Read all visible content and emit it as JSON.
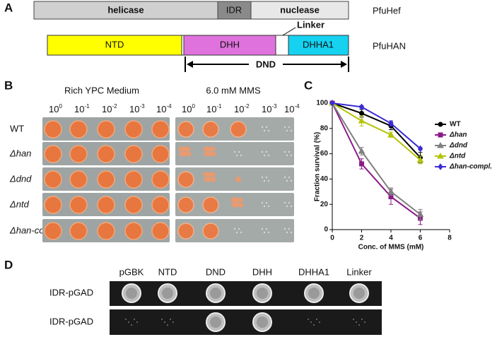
{
  "panel_a": {
    "label": "A",
    "hef": {
      "domains": [
        "helicase",
        "IDR",
        "nuclease"
      ],
      "name": "PfuHef"
    },
    "han": {
      "domains": [
        "NTD",
        "DHH",
        "DHHA1"
      ],
      "name": "PfuHAN",
      "linker": "Linker",
      "span": "DND"
    }
  },
  "panel_b": {
    "label": "B",
    "media": [
      "Rich YPC Medium",
      "6.0 mM MMS"
    ],
    "dilutions": [
      {
        "base": "10",
        "exp": "0"
      },
      {
        "base": "10",
        "exp": "-1"
      },
      {
        "base": "10",
        "exp": "-2"
      },
      {
        "base": "10",
        "exp": "-3"
      },
      {
        "base": "10",
        "exp": "-4"
      }
    ],
    "strains": [
      "WT",
      "Δhan",
      "Δdnd",
      "Δntd",
      "Δhan-compl."
    ]
  },
  "chart_data": {
    "type": "line",
    "panel_label": "C",
    "x_label": "Conc. of MMS (mM)",
    "y_label": "Fraction survival (%)",
    "x": [
      0,
      2,
      4,
      6
    ],
    "xlim": [
      0,
      8
    ],
    "xticks": [
      0,
      2,
      4,
      6,
      8
    ],
    "ylim": [
      0,
      100
    ],
    "yticks": [
      0,
      20,
      40,
      60,
      80,
      100
    ],
    "series": [
      {
        "name": "WT",
        "color": "#000000",
        "marker": "circle",
        "values": [
          100,
          92,
          82,
          57
        ],
        "errors": [
          0,
          3,
          3,
          4
        ]
      },
      {
        "name": "Δhan",
        "color": "#8b1a89",
        "marker": "square",
        "values": [
          100,
          52,
          26,
          9
        ],
        "errors": [
          0,
          4,
          6,
          5
        ]
      },
      {
        "name": "Δdnd",
        "color": "#808080",
        "marker": "triangle",
        "values": [
          100,
          62,
          30,
          12
        ],
        "errors": [
          0,
          3,
          3,
          4
        ]
      },
      {
        "name": "Δntd",
        "color": "#b5c40a",
        "marker": "triangle",
        "values": [
          100,
          86,
          75,
          55
        ],
        "errors": [
          0,
          4,
          2,
          3
        ]
      },
      {
        "name": "Δhan-compl.",
        "color": "#3a2bd6",
        "marker": "diamond",
        "values": [
          100,
          97,
          84,
          64
        ],
        "errors": [
          0,
          1,
          2,
          1
        ]
      }
    ]
  },
  "panel_d": {
    "label": "D",
    "columns": [
      "pGBK",
      "NTD",
      "DND",
      "DHH",
      "DHHA1",
      "Linker"
    ],
    "rows": [
      "IDR-pGAD",
      "IDR-pGAD"
    ]
  }
}
